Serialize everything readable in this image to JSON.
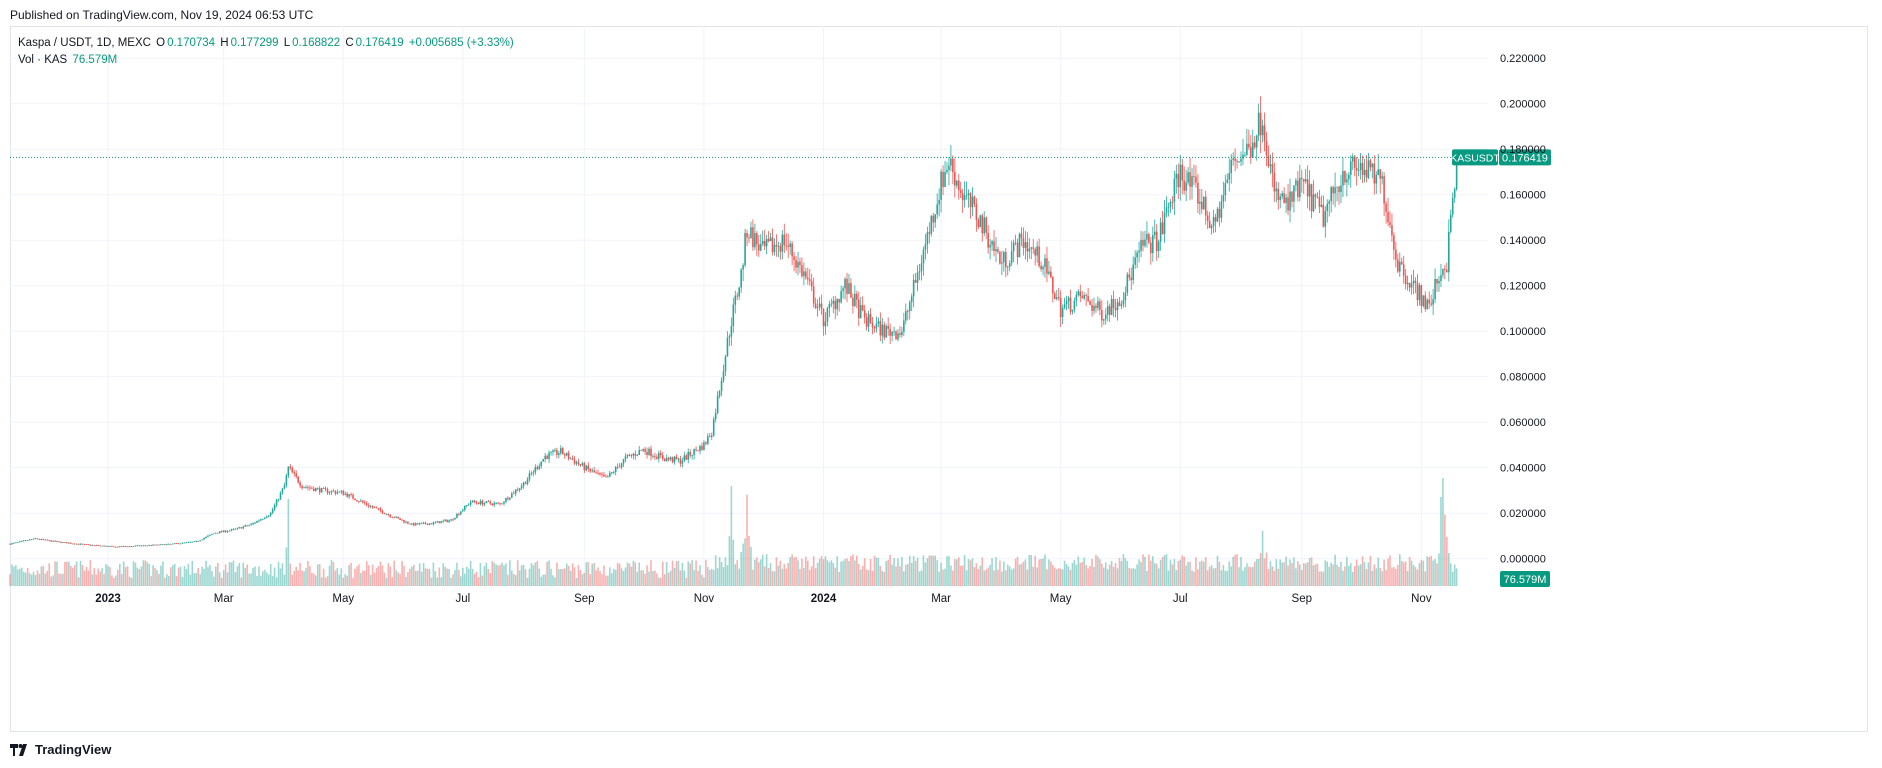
{
  "header": {
    "published": "Published on TradingView.com, Nov 19, 2024 06:53 UTC"
  },
  "legend": {
    "symbol": "Kaspa / USDT, 1D, MEXC",
    "o_label": "O",
    "o_value": "0.170734",
    "h_label": "H",
    "h_value": "0.177299",
    "l_label": "L",
    "l_value": "0.168822",
    "c_label": "C",
    "c_value": "0.176419",
    "change": "+0.005685 (+3.33%)",
    "vol_label": "Vol · KAS",
    "vol_value": "76.579M"
  },
  "footer": {
    "brand": "TradingView"
  },
  "colors": {
    "up": "#26a69a",
    "down": "#ef5350",
    "grid": "#f0f3fa",
    "text": "#131722",
    "badge": "#089981"
  },
  "chart_data": {
    "type": "candlestick",
    "symbol": "KASUSDT",
    "last_price": 0.176419,
    "last_volume_label": "76.579M",
    "y_axis": {
      "ticks": [
        "0.220000",
        "0.200000",
        "0.180000",
        "0.160000",
        "0.140000",
        "0.120000",
        "0.100000",
        "0.080000",
        "0.060000",
        "0.040000",
        "0.020000",
        "0.000000"
      ],
      "range": [
        -0.012,
        0.228
      ]
    },
    "x_axis": {
      "ticks": [
        {
          "label": "2023",
          "date": "2023-01-01",
          "bold": true
        },
        {
          "label": "Mar",
          "date": "2023-03-01",
          "bold": false
        },
        {
          "label": "May",
          "date": "2023-05-01",
          "bold": false
        },
        {
          "label": "Jul",
          "date": "2023-07-01",
          "bold": false
        },
        {
          "label": "Sep",
          "date": "2023-09-01",
          "bold": false
        },
        {
          "label": "Nov",
          "date": "2023-11-01",
          "bold": false
        },
        {
          "label": "2024",
          "date": "2024-01-01",
          "bold": true
        },
        {
          "label": "Mar",
          "date": "2024-03-01",
          "bold": false
        },
        {
          "label": "May",
          "date": "2024-05-01",
          "bold": false
        },
        {
          "label": "Jul",
          "date": "2024-07-01",
          "bold": false
        },
        {
          "label": "Sep",
          "date": "2024-09-01",
          "bold": false
        },
        {
          "label": "Nov",
          "date": "2024-11-01",
          "bold": false
        }
      ],
      "range": [
        "2022-11-12",
        "2024-12-05"
      ]
    },
    "price_path": [
      [
        "2022-11-12",
        0.0065
      ],
      [
        "2022-11-25",
        0.0088
      ],
      [
        "2022-12-05",
        0.0075
      ],
      [
        "2022-12-20",
        0.0062
      ],
      [
        "2023-01-05",
        0.0052
      ],
      [
        "2023-01-20",
        0.0058
      ],
      [
        "2023-02-01",
        0.0063
      ],
      [
        "2023-02-15",
        0.0075
      ],
      [
        "2023-02-25",
        0.0115
      ],
      [
        "2023-03-05",
        0.0125
      ],
      [
        "2023-03-15",
        0.015
      ],
      [
        "2023-03-25",
        0.02
      ],
      [
        "2023-04-01",
        0.032
      ],
      [
        "2023-04-03",
        0.04
      ],
      [
        "2023-04-10",
        0.032
      ],
      [
        "2023-04-20",
        0.03
      ],
      [
        "2023-05-01",
        0.029
      ],
      [
        "2023-05-15",
        0.023
      ],
      [
        "2023-05-25",
        0.019
      ],
      [
        "2023-06-05",
        0.015
      ],
      [
        "2023-06-15",
        0.0155
      ],
      [
        "2023-06-25",
        0.017
      ],
      [
        "2023-07-05",
        0.025
      ],
      [
        "2023-07-20",
        0.024
      ],
      [
        "2023-08-01",
        0.033
      ],
      [
        "2023-08-12",
        0.045
      ],
      [
        "2023-08-20",
        0.047
      ],
      [
        "2023-09-01",
        0.04
      ],
      [
        "2023-09-12",
        0.035
      ],
      [
        "2023-09-22",
        0.044
      ],
      [
        "2023-10-01",
        0.048
      ],
      [
        "2023-10-12",
        0.044
      ],
      [
        "2023-10-20",
        0.043
      ],
      [
        "2023-11-01",
        0.05
      ],
      [
        "2023-11-05",
        0.056
      ],
      [
        "2023-11-10",
        0.08
      ],
      [
        "2023-11-15",
        0.105
      ],
      [
        "2023-11-20",
        0.125
      ],
      [
        "2023-11-23",
        0.145
      ],
      [
        "2023-12-01",
        0.135
      ],
      [
        "2023-12-12",
        0.14
      ],
      [
        "2023-12-22",
        0.125
      ],
      [
        "2024-01-01",
        0.105
      ],
      [
        "2024-01-12",
        0.12
      ],
      [
        "2024-01-22",
        0.105
      ],
      [
        "2024-02-01",
        0.1
      ],
      [
        "2024-02-10",
        0.1
      ],
      [
        "2024-02-18",
        0.125
      ],
      [
        "2024-02-24",
        0.145
      ],
      [
        "2024-03-01",
        0.165
      ],
      [
        "2024-03-05",
        0.175
      ],
      [
        "2024-03-12",
        0.16
      ],
      [
        "2024-03-20",
        0.15
      ],
      [
        "2024-04-01",
        0.13
      ],
      [
        "2024-04-12",
        0.14
      ],
      [
        "2024-04-22",
        0.13
      ],
      [
        "2024-05-01",
        0.11
      ],
      [
        "2024-05-12",
        0.115
      ],
      [
        "2024-05-22",
        0.108
      ],
      [
        "2024-06-01",
        0.115
      ],
      [
        "2024-06-12",
        0.138
      ],
      [
        "2024-06-20",
        0.14
      ],
      [
        "2024-06-25",
        0.155
      ],
      [
        "2024-07-01",
        0.17
      ],
      [
        "2024-07-10",
        0.16
      ],
      [
        "2024-07-18",
        0.145
      ],
      [
        "2024-07-28",
        0.175
      ],
      [
        "2024-08-05",
        0.18
      ],
      [
        "2024-08-12",
        0.195
      ],
      [
        "2024-08-18",
        0.16
      ],
      [
        "2024-08-25",
        0.155
      ],
      [
        "2024-09-01",
        0.165
      ],
      [
        "2024-09-12",
        0.15
      ],
      [
        "2024-09-22",
        0.17
      ],
      [
        "2024-10-01",
        0.172
      ],
      [
        "2024-10-12",
        0.165
      ],
      [
        "2024-10-20",
        0.13
      ],
      [
        "2024-10-28",
        0.12
      ],
      [
        "2024-11-05",
        0.11
      ],
      [
        "2024-11-10",
        0.125
      ],
      [
        "2024-11-14",
        0.13
      ],
      [
        "2024-11-19",
        0.1764
      ]
    ],
    "volume_spikes": [
      [
        "2023-04-03",
        2.4
      ],
      [
        "2023-11-15",
        2.2
      ],
      [
        "2023-11-23",
        3.0
      ],
      [
        "2024-08-12",
        1.8
      ],
      [
        "2024-11-12",
        5.0
      ]
    ]
  }
}
